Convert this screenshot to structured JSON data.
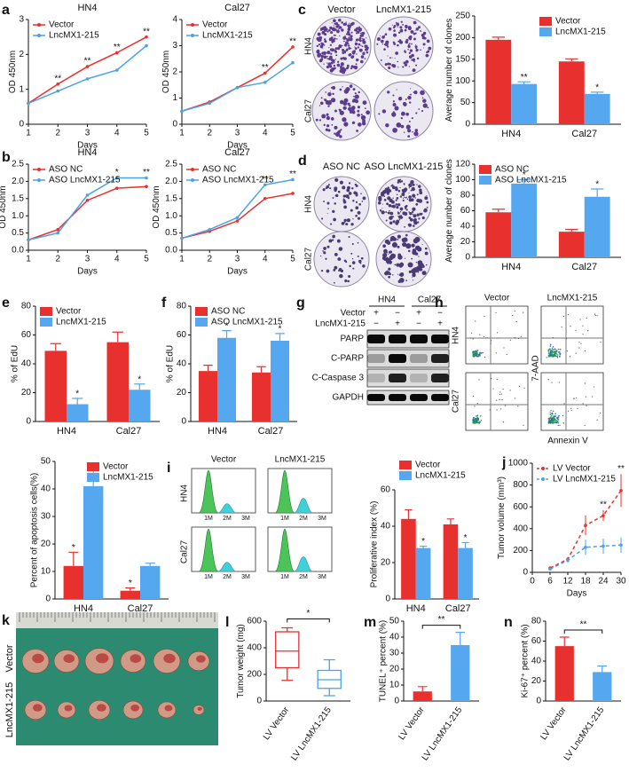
{
  "panel_labels": [
    "a",
    "b",
    "c",
    "d",
    "e",
    "f",
    "g",
    "h",
    "i",
    "j",
    "k",
    "l",
    "m",
    "n"
  ],
  "chart_data": [
    {
      "type": "line",
      "title": "HN4",
      "x": [
        1,
        2,
        3,
        4,
        5
      ],
      "xlim": [
        1,
        5
      ],
      "xticks": [
        1,
        2,
        3,
        4,
        5
      ],
      "ylim": [
        0,
        3
      ],
      "yticks": [
        0,
        1,
        2,
        3
      ],
      "xlabel": "Days",
      "ylabel": "OD 450nm",
      "legend": "upper left",
      "series": [
        {
          "name": "Vector",
          "color": "#e8312f",
          "values": [
            0.6,
            1.15,
            1.65,
            2.05,
            2.5
          ],
          "significance": [
            null,
            "**",
            "**",
            "**",
            "**"
          ]
        },
        {
          "name": "LncMX1-215",
          "color": "#4aa3e8",
          "values": [
            0.6,
            0.95,
            1.3,
            1.55,
            2.25
          ]
        }
      ]
    },
    {
      "type": "line",
      "title": "Cal27",
      "x": [
        1,
        2,
        3,
        4,
        5
      ],
      "xlim": [
        1,
        5
      ],
      "xticks": [
        1,
        2,
        3,
        4,
        5
      ],
      "ylim": [
        0,
        4
      ],
      "yticks": [
        0,
        1,
        2,
        3,
        4
      ],
      "xlabel": "Days",
      "ylabel": "OD 450nm",
      "legend": "upper left",
      "series": [
        {
          "name": "Vector",
          "color": "#e8312f",
          "values": [
            0.5,
            0.85,
            1.4,
            1.95,
            2.95
          ],
          "significance": [
            null,
            null,
            null,
            "**",
            "**"
          ]
        },
        {
          "name": "LncMX1-215",
          "color": "#4aa3e8",
          "values": [
            0.5,
            0.8,
            1.4,
            1.6,
            2.35
          ]
        }
      ]
    },
    {
      "type": "line",
      "title": "HN4",
      "x": [
        1,
        2,
        3,
        4,
        5
      ],
      "xlim": [
        1,
        5
      ],
      "xticks": [
        1,
        2,
        3,
        4,
        5
      ],
      "ylim": [
        0,
        2.5
      ],
      "yticks": [
        {
          "value": 0,
          "label": "0.0"
        },
        0.5,
        {
          "value": 1,
          "label": "1.0"
        },
        1.5,
        {
          "value": 2,
          "label": "2.0"
        },
        2.5
      ],
      "xlabel": "Days",
      "ylabel": "OD 450nm",
      "legend": "upper left",
      "series": [
        {
          "name": "ASO NC",
          "color": "#e8312f",
          "values": [
            0.3,
            0.6,
            1.45,
            1.8,
            1.85
          ]
        },
        {
          "name": "ASO LncMX1-215",
          "color": "#4aa3e8",
          "values": [
            0.3,
            0.5,
            1.6,
            2.1,
            2.1
          ],
          "significance": [
            null,
            null,
            null,
            "*",
            "**"
          ]
        }
      ]
    },
    {
      "type": "line",
      "title": "Cal27",
      "x": [
        1,
        2,
        3,
        4,
        5
      ],
      "xlim": [
        1,
        5
      ],
      "xticks": [
        1,
        2,
        3,
        4,
        5
      ],
      "ylim": [
        0,
        2.5
      ],
      "yticks": [
        {
          "value": 0,
          "label": "0.0"
        },
        0.5,
        {
          "value": 1,
          "label": "1.0"
        },
        1.5,
        {
          "value": 2,
          "label": "2.0"
        },
        2.5
      ],
      "xlabel": "Days",
      "ylabel": "OD 450nm",
      "legend": "upper left",
      "series": [
        {
          "name": "ASO NC",
          "color": "#e8312f",
          "values": [
            0.35,
            0.55,
            0.85,
            1.5,
            1.65
          ]
        },
        {
          "name": "ASO LncMX1-215",
          "color": "#4aa3e8",
          "values": [
            0.35,
            0.6,
            0.95,
            1.9,
            2.05
          ],
          "significance": [
            null,
            null,
            null,
            "**",
            "**"
          ]
        }
      ]
    },
    {
      "type": "bar",
      "categories": [
        "HN4",
        "Cal27"
      ],
      "ylim": [
        0,
        250
      ],
      "yticks": [
        0,
        50,
        100,
        150,
        200,
        250
      ],
      "ylabel": "Average number of clones",
      "legend": "upper right",
      "series": [
        {
          "name": "Vector",
          "color": "#e8312f",
          "values": [
            195,
            145
          ],
          "errors": [
            6,
            6
          ]
        },
        {
          "name": "LncMX1-215",
          "color": "#55a8f0",
          "values": [
            93,
            70
          ],
          "errors": [
            5,
            4
          ],
          "significance": [
            "**",
            "*"
          ]
        }
      ]
    },
    {
      "type": "bar",
      "categories": [
        "HN4",
        "Cal27"
      ],
      "ylim": [
        0,
        120
      ],
      "yticks": [
        0,
        20,
        40,
        60,
        80,
        100,
        120
      ],
      "ylabel": "Average number of clones",
      "legend": "upper left",
      "series": [
        {
          "name": "ASO NC",
          "color": "#e8312f",
          "values": [
            58,
            33
          ],
          "errors": [
            4,
            3
          ]
        },
        {
          "name": "ASO LncMX1-215",
          "color": "#55a8f0",
          "values": [
            95,
            78
          ],
          "errors": [
            5,
            10
          ],
          "significance": [
            "*",
            "*"
          ]
        }
      ]
    },
    {
      "type": "bar",
      "categories": [
        "HN4",
        "Cal27"
      ],
      "ylim": [
        0,
        80
      ],
      "yticks": [
        0,
        20,
        40,
        60,
        80
      ],
      "ylabel": "% of EdU",
      "legend": "upper left",
      "series": [
        {
          "name": "Vector",
          "color": "#e8312f",
          "values": [
            49,
            55
          ],
          "errors": [
            5,
            7
          ]
        },
        {
          "name": "LncMX1-215",
          "color": "#55a8f0",
          "values": [
            12,
            22
          ],
          "errors": [
            4,
            4
          ],
          "significance": [
            "*",
            "*"
          ]
        }
      ]
    },
    {
      "type": "bar",
      "categories": [
        "HN4",
        "Cal27"
      ],
      "ylim": [
        0,
        80
      ],
      "yticks": [
        0,
        20,
        40,
        60,
        80
      ],
      "ylabel": "% of EdU",
      "legend": "upper left",
      "series": [
        {
          "name": "ASO NC",
          "color": "#e8312f",
          "values": [
            35,
            34
          ],
          "errors": [
            4,
            4
          ]
        },
        {
          "name": "ASO LncMX1-215",
          "color": "#55a8f0",
          "values": [
            58,
            56
          ],
          "errors": [
            5,
            5
          ],
          "significance": [
            "*",
            "*"
          ]
        }
      ]
    },
    {
      "type": "bar",
      "categories": [
        "HN4",
        "Cal27"
      ],
      "ylim": [
        0,
        50
      ],
      "yticks": [
        0,
        10,
        20,
        30,
        40,
        50
      ],
      "ylabel": "Percent of apoptosis cells(%)",
      "legend": "upper right",
      "series": [
        {
          "name": "Vector",
          "color": "#e8312f",
          "values": [
            12,
            3
          ],
          "errors": [
            5,
            1
          ],
          "significance": [
            "*",
            "*"
          ]
        },
        {
          "name": "LncMX1-215",
          "color": "#55a8f0",
          "values": [
            41,
            12
          ],
          "errors": [
            6,
            1
          ]
        }
      ]
    },
    {
      "type": "bar",
      "categories": [
        "HN4",
        "Cal27"
      ],
      "ylim": [
        0,
        60
      ],
      "yticks": [
        0,
        20,
        40,
        60
      ],
      "ylabel": "Proliferative index (%)",
      "legend": "above",
      "series": [
        {
          "name": "Vector",
          "color": "#e8312f",
          "values": [
            44,
            41
          ],
          "errors": [
            5,
            3
          ]
        },
        {
          "name": "LncMX1-215",
          "color": "#55a8f0",
          "values": [
            28,
            28
          ],
          "errors": [
            1,
            3
          ],
          "significance": [
            "*",
            "*"
          ]
        }
      ]
    },
    {
      "type": "line",
      "x": [
        6,
        12,
        18,
        24,
        30
      ],
      "xlim": [
        0,
        30
      ],
      "xticks": [
        0,
        6,
        12,
        18,
        24,
        30
      ],
      "ylim": [
        0,
        1000
      ],
      "yticks": [
        0,
        200,
        400,
        600,
        800,
        1000
      ],
      "xlabel": "Days",
      "ylabel": "Tumor volume (mm³)",
      "legend": "upper left",
      "line_style": "dashed",
      "series": [
        {
          "name": "LV Vector",
          "color": "#e8312f",
          "values": [
            40,
            120,
            430,
            520,
            750
          ],
          "errors": [
            10,
            20,
            90,
            50,
            150
          ],
          "significance": [
            null,
            null,
            null,
            "**",
            "**"
          ]
        },
        {
          "name": "LV LncMX1-215",
          "color": "#4aa3e8",
          "values": [
            30,
            110,
            230,
            240,
            250
          ],
          "errors": [
            10,
            20,
            70,
            70,
            70
          ]
        }
      ]
    },
    {
      "type": "box",
      "categories": [
        "LV Vector",
        "LV LncMX1-215"
      ],
      "colors": [
        "#e8312f",
        "#4aa3e8"
      ],
      "ylim": [
        0,
        600
      ],
      "yticks": [
        0,
        200,
        400,
        600
      ],
      "ylabel": "Tumor weight (mg)",
      "comparison": "*",
      "rotate_labels": true,
      "boxes": [
        {
          "min": 155,
          "q1": 250,
          "median": 375,
          "q3": 520,
          "max": 550
        },
        {
          "min": 40,
          "q1": 95,
          "median": 160,
          "q3": 230,
          "max": 310
        }
      ]
    },
    {
      "type": "bar",
      "categories": [
        "LV Vector",
        "LV LncMX1-215"
      ],
      "colors": [
        "#e8312f",
        "#55a8f0"
      ],
      "values": [
        6,
        35
      ],
      "errors": [
        3,
        8
      ],
      "ylim": [
        0,
        50
      ],
      "yticks": [
        0,
        10,
        20,
        30,
        40,
        50
      ],
      "ylabel": "TUNEL⁺ percent (%)",
      "comparison": "**",
      "rotate_labels": true
    },
    {
      "type": "bar",
      "categories": [
        "LV Vector",
        "LV LncMX1-215"
      ],
      "colors": [
        "#e8312f",
        "#55a8f0"
      ],
      "values": [
        55,
        29
      ],
      "errors": [
        9,
        6
      ],
      "ylim": [
        0,
        80
      ],
      "yticks": [
        0,
        20,
        40,
        60,
        80
      ],
      "ylabel": "Ki-67⁺ percent (%)",
      "comparison": "**",
      "rotate_labels": true
    }
  ],
  "images": {
    "c": {
      "columns": [
        "Vector",
        "LncMX1-215"
      ],
      "rows": [
        "HN4",
        "Cal27"
      ]
    },
    "d": {
      "columns": [
        "ASO NC",
        "ASO LncMX1-215"
      ],
      "rows": [
        "HN4",
        "Cal27"
      ]
    },
    "g": {
      "cell_lines": [
        "HN4",
        "Cal27"
      ],
      "conditions": [
        {
          "name": "Vector",
          "lanes": [
            "+",
            "−",
            "+",
            "−"
          ]
        },
        {
          "name": "LncMX1-215",
          "lanes": [
            "−",
            "+",
            "−",
            "+"
          ]
        }
      ],
      "bands": [
        "PARP",
        "C-PARP",
        "C-Caspase 3",
        "GAPDH"
      ]
    },
    "h": {
      "columns": [
        "Vector",
        "LncMX1-215"
      ],
      "rows": [
        "HN4",
        "Cal27"
      ],
      "y_label": "7-AAD",
      "x_label": "Annexin V"
    },
    "i": {
      "columns": [
        "Vector",
        "LncMX1-215"
      ],
      "rows": [
        "HN4",
        "Cal27"
      ],
      "x_ticks": [
        "1M",
        "2M",
        "3M"
      ]
    },
    "k": {
      "rows": [
        "Vector",
        "LncMX1-215"
      ]
    }
  }
}
